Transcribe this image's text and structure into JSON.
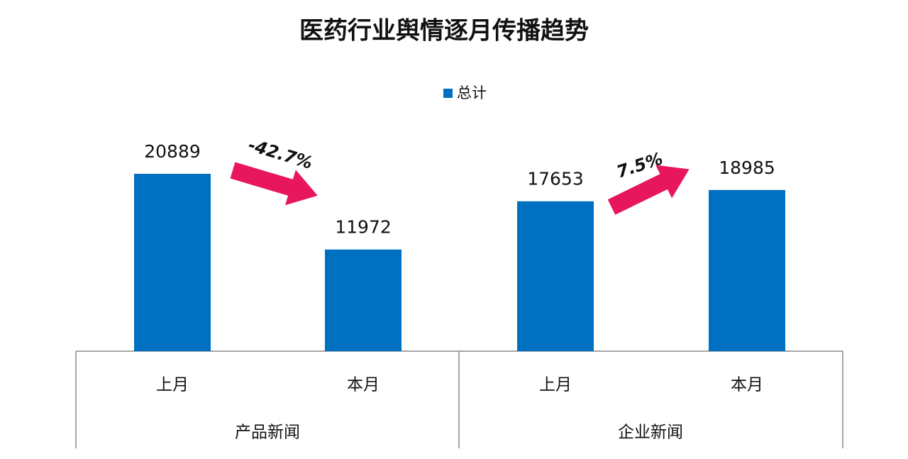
{
  "chart_data": {
    "type": "bar",
    "title": "医药行业舆情逐月传播趋势",
    "categories": [
      "上月",
      "本月",
      "上月",
      "本月"
    ],
    "groups": [
      "产品新闻",
      "企业新闻"
    ],
    "series": [
      {
        "name": "总计",
        "color": "#0070c0",
        "values": [
          20889,
          11972,
          17653,
          18985
        ]
      }
    ],
    "annotations": [
      "-42.7%",
      "7.5%"
    ],
    "arrow_color": "#e8175d"
  }
}
